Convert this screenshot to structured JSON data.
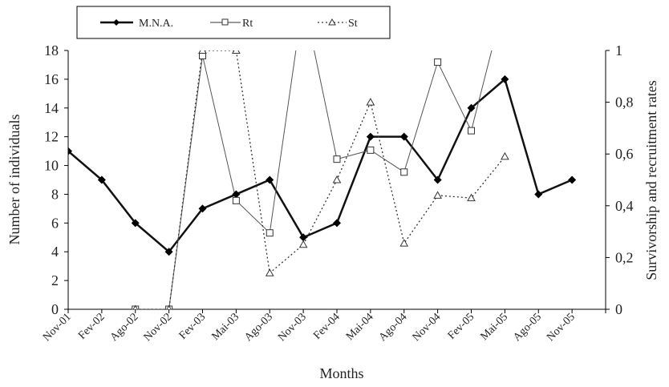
{
  "chart_data": {
    "type": "line",
    "categories": [
      "Nov-01",
      "Fev-02",
      "Ago-02",
      "Nov-02",
      "Fev-03",
      "Mai-03",
      "Ago-03",
      "Nov-03",
      "Fev-04",
      "Mai-04",
      "Ago-04",
      "Nov-04",
      "Fev-05",
      "Mai-05",
      "Ago-05",
      "Nov-05"
    ],
    "xlabel": "Months",
    "ylabel": "Number of individuals",
    "y2label": "Survivorship and recruitment rates",
    "ylim": [
      0,
      18
    ],
    "y2lim": [
      0,
      1
    ],
    "yticks": [
      "0",
      "2",
      "4",
      "6",
      "8",
      "10",
      "12",
      "14",
      "16",
      "18"
    ],
    "y2ticks": [
      "0",
      "0,2",
      "0,4",
      "0,6",
      "0,8",
      "1"
    ],
    "legend_position": "top",
    "grid": false,
    "series": [
      {
        "name": "M.N.A.",
        "axis": "left",
        "style": "solid-bold-diamond",
        "values": [
          11,
          9,
          6,
          4,
          7,
          8,
          9,
          5,
          6,
          12,
          12,
          9,
          14,
          16,
          8,
          9
        ]
      },
      {
        "name": "Rt",
        "axis": "right",
        "style": "solid-thin-square",
        "values": [
          null,
          null,
          0,
          0,
          0.98,
          0.42,
          0.295,
          1.2,
          0.58,
          0.615,
          0.53,
          0.955,
          0.69,
          1.2,
          null,
          null
        ]
      },
      {
        "name": "St",
        "axis": "right",
        "style": "dotted-triangle",
        "values": [
          null,
          null,
          0,
          0,
          1,
          1,
          0.14,
          0.25,
          0.5,
          0.8,
          0.255,
          0.44,
          0.43,
          0.59,
          null,
          null
        ]
      }
    ]
  }
}
